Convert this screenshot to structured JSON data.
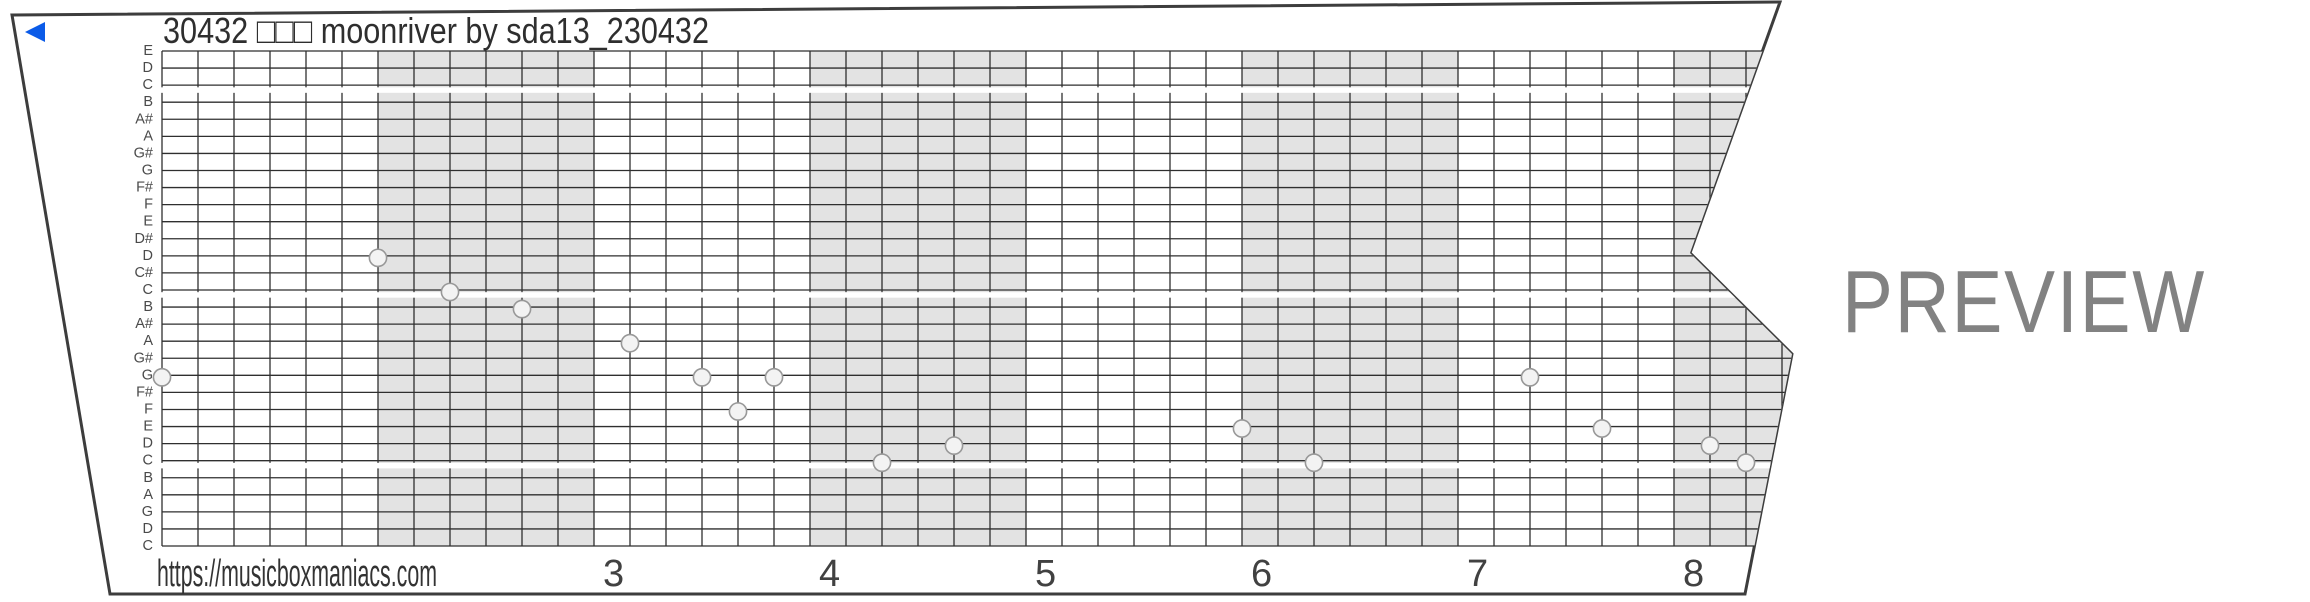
{
  "strip": {
    "title": "30432 □□□ moonriver by sda13_230432",
    "footer_url": "https://musicboxmaniacs.com",
    "watermark": "PREVIEW",
    "direction_arrow": "left-triangle-icon"
  },
  "note_grid": {
    "row_labels": [
      "E",
      "D",
      "C",
      "B",
      "A#",
      "A",
      "G#",
      "G",
      "F#",
      "F",
      "E",
      "D#",
      "D",
      "C#",
      "C",
      "B",
      "A#",
      "A",
      "G#",
      "G",
      "F#",
      "F",
      "E",
      "D",
      "C",
      "B",
      "A",
      "G",
      "D",
      "C"
    ],
    "octave_break_below_lines": [
      3,
      15,
      25
    ],
    "columns_per_beat": 6,
    "beat_numbers": [
      {
        "label": "3",
        "beat_boundary": 2
      },
      {
        "label": "4",
        "beat_boundary": 3
      },
      {
        "label": "5",
        "beat_boundary": 4
      },
      {
        "label": "6",
        "beat_boundary": 5
      },
      {
        "label": "7",
        "beat_boundary": 6
      },
      {
        "label": "8",
        "beat_boundary": 7
      }
    ],
    "notes": [
      {
        "col": 0,
        "line": 20,
        "pitch": "G"
      },
      {
        "col": 6,
        "line": 13,
        "pitch": "D"
      },
      {
        "col": 8,
        "line": 15,
        "pitch": "C"
      },
      {
        "col": 10,
        "line": 16,
        "pitch": "B"
      },
      {
        "col": 13,
        "line": 18,
        "pitch": "A"
      },
      {
        "col": 15,
        "line": 20,
        "pitch": "G"
      },
      {
        "col": 16,
        "line": 22,
        "pitch": "F"
      },
      {
        "col": 17,
        "line": 20,
        "pitch": "G"
      },
      {
        "col": 20,
        "line": 25,
        "pitch": "C"
      },
      {
        "col": 22,
        "line": 24,
        "pitch": "D"
      },
      {
        "col": 30,
        "line": 23,
        "pitch": "E"
      },
      {
        "col": 32,
        "line": 25,
        "pitch": "C"
      },
      {
        "col": 38,
        "line": 20,
        "pitch": "G"
      },
      {
        "col": 40,
        "line": 23,
        "pitch": "E"
      },
      {
        "col": 43,
        "line": 24,
        "pitch": "D"
      },
      {
        "col": 44,
        "line": 25,
        "pitch": "C"
      }
    ]
  },
  "colors": {
    "arrow_blue": "#0B5BE8",
    "grid_line": "#2f2f2f",
    "strip_edge": "#3d3d3d",
    "shaded_column": "#e3e3e3",
    "note_fill": "#f3f3f3",
    "note_stroke": "#989898",
    "watermark_gray": "#828282"
  }
}
